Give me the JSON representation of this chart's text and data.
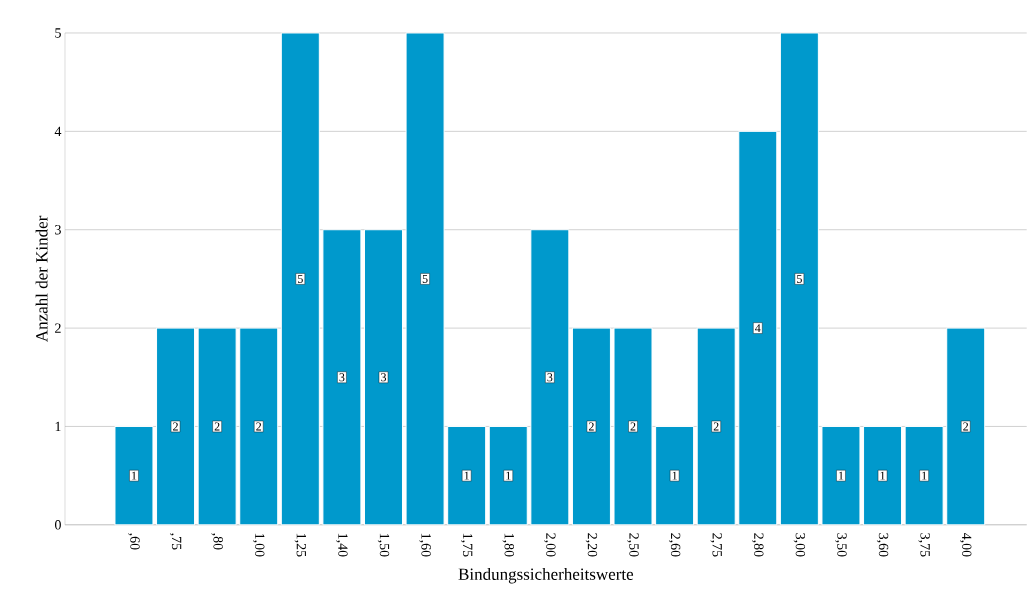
{
  "chart_data": {
    "type": "bar",
    "xlabel": "Bindungssicherheitswerte",
    "ylabel": "Anzahl der Kinder",
    "categories": [
      ",60",
      ",75",
      ",80",
      "1,00",
      "1,25",
      "1,40",
      "1,50",
      "1,60",
      "1,75",
      "1,80",
      "2,00",
      "2,20",
      "2,50",
      "2,60",
      "2,75",
      "2,80",
      "3,00",
      "3,50",
      "3,60",
      "3,75",
      "4,00"
    ],
    "values": [
      1,
      2,
      2,
      2,
      5,
      3,
      3,
      5,
      1,
      1,
      3,
      2,
      2,
      1,
      2,
      4,
      5,
      1,
      1,
      1,
      2
    ],
    "color": "#0099cc",
    "ylim": [
      0,
      5
    ],
    "yticks": [
      0,
      1,
      2,
      3,
      4,
      5
    ],
    "grid": "y",
    "data_labels": true
  }
}
